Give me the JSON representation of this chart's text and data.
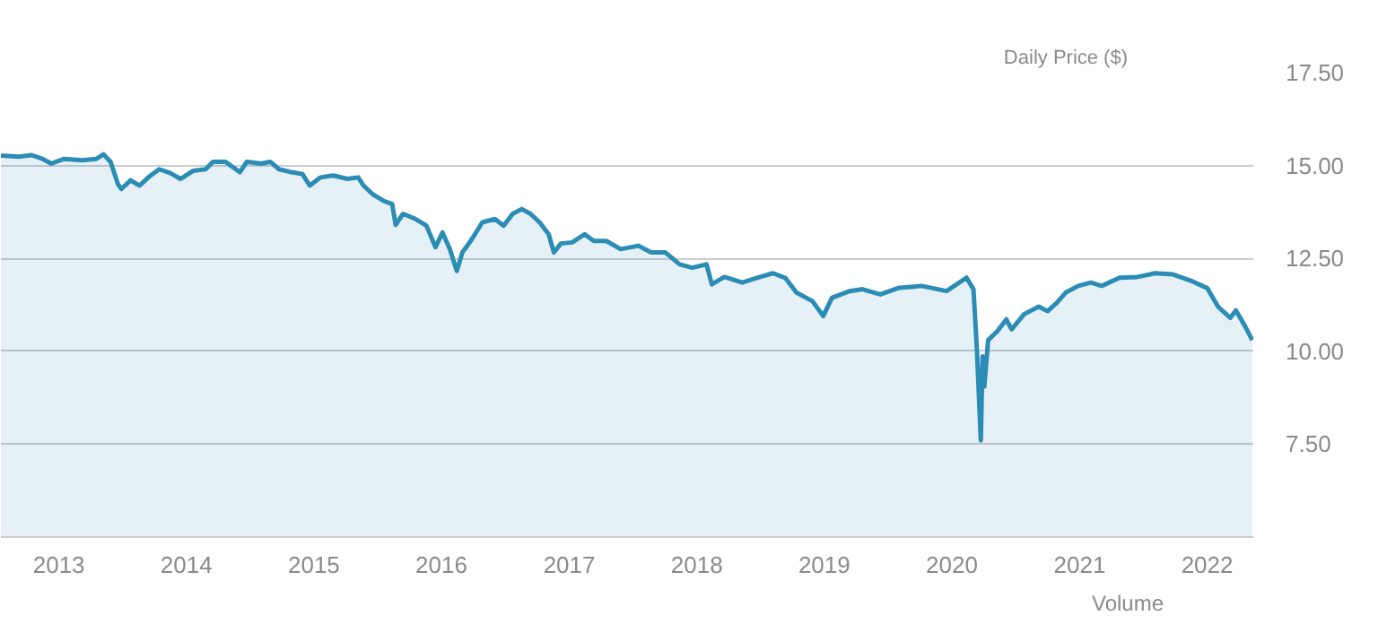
{
  "chart_data": {
    "type": "area",
    "ylabel": "Daily Price ($)",
    "annotations": [
      "Volume"
    ],
    "x": [
      "2012-07-19",
      "2012-09-09",
      "2012-10-15",
      "2012-11-15",
      "2012-12-10",
      "2013-01-16",
      "2013-03-08",
      "2013-04-18",
      "2013-05-09",
      "2013-05-29",
      "2013-06-19",
      "2013-06-29",
      "2013-07-25",
      "2013-08-20",
      "2013-09-14",
      "2013-10-15",
      "2013-11-15",
      "2013-12-15",
      "2014-01-21",
      "2014-02-25",
      "2014-03-18",
      "2014-04-23",
      "2014-06-03",
      "2014-06-23",
      "2014-08-03",
      "2014-08-29",
      "2014-09-23",
      "2014-10-29",
      "2014-11-29",
      "2014-12-20",
      "2015-01-20",
      "2015-02-25",
      "2015-04-07",
      "2015-05-08",
      "2015-05-23",
      "2015-06-18",
      "2015-07-19",
      "2015-08-13",
      "2015-08-23",
      "2015-09-13",
      "2015-10-19",
      "2015-11-19",
      "2015-12-15",
      "2016-01-04",
      "2016-01-25",
      "2016-02-14",
      "2016-03-01",
      "2016-03-27",
      "2016-04-27",
      "2016-06-02",
      "2016-06-27",
      "2016-07-23",
      "2016-08-18",
      "2016-09-12",
      "2016-10-08",
      "2016-11-03",
      "2016-11-18",
      "2016-12-08",
      "2017-01-09",
      "2017-02-14",
      "2017-03-12",
      "2017-04-17",
      "2017-05-28",
      "2017-07-18",
      "2017-08-23",
      "2017-10-03",
      "2017-11-13",
      "2017-12-19",
      "2018-01-29",
      "2018-02-13",
      "2018-03-21",
      "2018-05-11",
      "2018-07-01",
      "2018-08-07",
      "2018-09-12",
      "2018-10-13",
      "2018-11-28",
      "2018-12-29",
      "2019-01-23",
      "2019-03-15",
      "2019-04-20",
      "2019-06-10",
      "2019-07-31",
      "2019-10-06",
      "2019-12-17",
      "2020-02-12",
      "2020-03-03",
      "2020-03-13",
      "2020-03-24",
      "2020-03-29",
      "2020-04-03",
      "2020-04-14",
      "2020-05-10",
      "2020-06-05",
      "2020-06-20",
      "2020-07-26",
      "2020-09-06",
      "2020-10-01",
      "2020-10-27",
      "2020-11-22",
      "2020-12-28",
      "2021-02-02",
      "2021-03-05",
      "2021-04-25",
      "2021-06-15",
      "2021-08-05",
      "2021-09-25",
      "2021-11-15",
      "2022-01-01",
      "2022-02-01",
      "2022-03-08",
      "2022-03-24",
      "2022-04-19",
      "2022-05-10"
    ],
    "series": [
      {
        "color": "#2b8cb5",
        "values": [
          15.27,
          15.24,
          15.28,
          15.18,
          15.05,
          15.18,
          15.14,
          15.18,
          15.3,
          15.1,
          14.5,
          14.37,
          14.6,
          14.46,
          14.68,
          14.9,
          14.8,
          14.64,
          14.86,
          14.9,
          15.1,
          15.1,
          14.82,
          15.1,
          15.05,
          15.1,
          14.9,
          14.82,
          14.77,
          14.46,
          14.68,
          14.73,
          14.64,
          14.68,
          14.46,
          14.23,
          14.05,
          13.96,
          13.4,
          13.7,
          13.56,
          13.38,
          12.8,
          13.2,
          12.75,
          12.16,
          12.66,
          13.0,
          13.47,
          13.56,
          13.38,
          13.7,
          13.83,
          13.7,
          13.47,
          13.15,
          12.66,
          12.9,
          12.93,
          13.15,
          12.97,
          12.97,
          12.75,
          12.84,
          12.66,
          12.66,
          12.34,
          12.25,
          12.34,
          11.8,
          12.0,
          11.85,
          12.0,
          12.1,
          11.97,
          11.58,
          11.35,
          10.95,
          11.44,
          11.62,
          11.67,
          11.53,
          11.7,
          11.76,
          11.62,
          11.98,
          11.67,
          10.0,
          7.6,
          9.86,
          9.05,
          10.3,
          10.54,
          10.86,
          10.59,
          11.0,
          11.2,
          11.08,
          11.3,
          11.58,
          11.76,
          11.85,
          11.76,
          11.98,
          12.0,
          12.1,
          12.07,
          11.9,
          11.7,
          11.2,
          10.9,
          11.1,
          10.68,
          10.3
        ]
      }
    ],
    "xlim": [
      "2012-07-19",
      "2022-05-13"
    ],
    "xticks": [
      {
        "value": "2013-01-01",
        "label": "2013"
      },
      {
        "value": "2014-01-01",
        "label": "2014"
      },
      {
        "value": "2015-01-01",
        "label": "2015"
      },
      {
        "value": "2016-01-01",
        "label": "2016"
      },
      {
        "value": "2017-01-01",
        "label": "2017"
      },
      {
        "value": "2018-01-01",
        "label": "2018"
      },
      {
        "value": "2019-01-01",
        "label": "2019"
      },
      {
        "value": "2020-01-01",
        "label": "2020"
      },
      {
        "value": "2021-01-01",
        "label": "2021"
      },
      {
        "value": "2022-01-01",
        "label": "2022"
      }
    ],
    "ylim": [
      5,
      17.5
    ],
    "yticks": [
      {
        "value": 7.5,
        "label": "7.50"
      },
      {
        "value": 10,
        "label": "10.00"
      },
      {
        "value": 12.5,
        "label": "12.50"
      },
      {
        "value": 15,
        "label": "15.00"
      },
      {
        "value": 17.5,
        "label": "17.50"
      }
    ],
    "grid": "y"
  }
}
